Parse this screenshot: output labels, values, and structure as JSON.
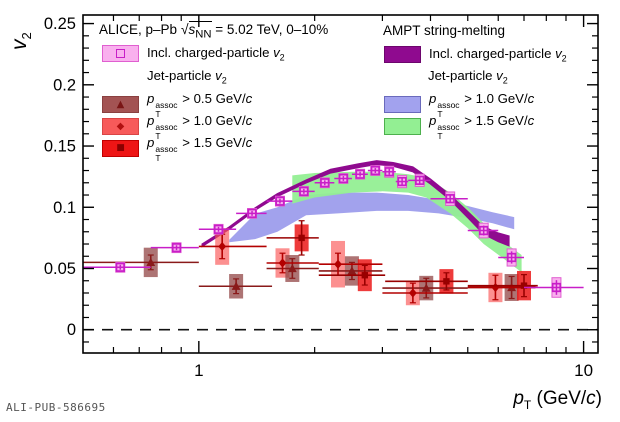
{
  "figure": {
    "watermark": "ALI-PUB-586695"
  },
  "axes": {
    "y_title": {
      "v": "v",
      "sub": "2"
    },
    "x_title": {
      "p": "p",
      "sub": "T",
      "mid": " (GeV/",
      "c": "c",
      "end": ")"
    }
  },
  "icons": {
    "triangle_marker": "▲",
    "diamond_marker": "◆",
    "square_marker": "■"
  },
  "legend_left": {
    "title": {
      "prefix": "ALICE, p–Pb ",
      "sqrt": "√",
      "s": "s",
      "nn": "NN",
      "suffix": " = 5.02 TeV, 0–10%"
    },
    "incl": {
      "text": "Incl. charged-particle ",
      "v": "v",
      "sub": "2"
    },
    "jet": {
      "text": "Jet-particle ",
      "v": "v",
      "sub": "2"
    },
    "rows": [
      {
        "p": "p",
        "sup": "assoc",
        "sub": "T",
        "mid": " > 0.5 GeV/",
        "c": "c"
      },
      {
        "p": "p",
        "sup": "assoc",
        "sub": "T",
        "mid": " > 1.0 GeV/",
        "c": "c"
      },
      {
        "p": "p",
        "sup": "assoc",
        "sub": "T",
        "mid": " > 1.5 GeV/",
        "c": "c"
      }
    ]
  },
  "legend_right": {
    "title": "AMPT string-melting",
    "incl": {
      "text": "Incl. charged-particle ",
      "v": "v",
      "sub": "2"
    },
    "jet": {
      "text": "Jet-particle ",
      "v": "v",
      "sub": "2"
    },
    "rows": [
      {
        "p": "p",
        "sup": "assoc",
        "sub": "T",
        "mid": " > 1.0 GeV/",
        "c": "c"
      },
      {
        "p": "p",
        "sup": "assoc",
        "sub": "T",
        "mid": " > 1.5 GeV/",
        "c": "c"
      }
    ]
  },
  "chart_data": {
    "type": "scatter",
    "title": "ALICE, p-Pb sqrt(s_NN) = 5.02 TeV, 0-10%",
    "xlabel": "p_T (GeV/c)",
    "ylabel": "v_2",
    "x_scale": "log",
    "xlim": [
      0.5,
      10.9
    ],
    "ylim": [
      -0.019,
      0.257
    ],
    "grid": false,
    "zero_line": 0,
    "x_major": [
      {
        "v": 1,
        "label": "1"
      },
      {
        "v": 10,
        "label": "10"
      }
    ],
    "x_minor": [
      0.6,
      0.7,
      0.8,
      0.9,
      2,
      3,
      4,
      5,
      6,
      7,
      8,
      9
    ],
    "y_major": [
      {
        "v": 0,
        "label": "0"
      },
      {
        "v": 0.05,
        "label": "0.05"
      },
      {
        "v": 0.1,
        "label": "0.1"
      },
      {
        "v": 0.15,
        "label": "0.15"
      },
      {
        "v": 0.2,
        "label": "0.2"
      },
      {
        "v": 0.25,
        "label": "0.25"
      }
    ],
    "y_minor_step": 0.01,
    "point_format": [
      "pT",
      "v2",
      "pT_bin_lo",
      "pT_bin_hi",
      "stat_err",
      "sys_err"
    ],
    "series": {
      "incl_charged": {
        "name": "Incl. charged-particle v2",
        "marker": "open-square",
        "color": "#c81ec8",
        "box_fill": "#f9b0ee",
        "box_stroke": "#e05fd0",
        "points": [
          [
            0.625,
            0.051,
            0.5,
            0.75,
            0.002,
            0.004
          ],
          [
            0.875,
            0.067,
            0.75,
            1.0,
            0.002,
            0.004
          ],
          [
            1.125,
            0.082,
            1.0,
            1.25,
            0.002,
            0.004
          ],
          [
            1.375,
            0.095,
            1.25,
            1.5,
            0.002,
            0.004
          ],
          [
            1.625,
            0.105,
            1.5,
            1.75,
            0.002,
            0.004
          ],
          [
            1.875,
            0.113,
            1.75,
            2.0,
            0.002,
            0.004
          ],
          [
            2.125,
            0.12,
            2.0,
            2.25,
            0.002,
            0.004
          ],
          [
            2.375,
            0.1235,
            2.25,
            2.5,
            0.002,
            0.004
          ],
          [
            2.625,
            0.127,
            2.5,
            2.75,
            0.002,
            0.004
          ],
          [
            2.875,
            0.13,
            2.75,
            3.0,
            0.002,
            0.004
          ],
          [
            3.125,
            0.129,
            3.0,
            3.25,
            0.0025,
            0.0045
          ],
          [
            3.375,
            0.121,
            3.25,
            3.5,
            0.0025,
            0.005
          ],
          [
            3.75,
            0.122,
            3.5,
            4.0,
            0.003,
            0.005
          ],
          [
            4.5,
            0.107,
            4.0,
            5.0,
            0.003,
            0.0055
          ],
          [
            5.5,
            0.081,
            5.0,
            6.0,
            0.004,
            0.006
          ],
          [
            6.5,
            0.059,
            6.0,
            7.0,
            0.005,
            0.007
          ],
          [
            8.5,
            0.0345,
            7.0,
            10.0,
            0.006,
            0.008
          ]
        ]
      },
      "jet_assoc05": {
        "name": "Jet-particle v2, pT assoc > 0.5 GeV/c",
        "marker": "triangle",
        "color": "#8a1a1a",
        "box_fill": "rgba(145,70,70,0.75)",
        "points": [
          [
            0.75,
            0.055,
            0.5,
            1.0,
            0.006,
            0.012
          ],
          [
            1.25,
            0.0355,
            1.0,
            1.55,
            0.006,
            0.01
          ],
          [
            1.75,
            0.05,
            1.5,
            2.05,
            0.008,
            0.011
          ],
          [
            2.5,
            0.048,
            2.05,
            3.0,
            0.007,
            0.012
          ],
          [
            3.9,
            0.034,
            3.0,
            5.0,
            0.008,
            0.01
          ],
          [
            6.5,
            0.0345,
            5.0,
            7.5,
            0.009,
            0.011
          ]
        ]
      },
      "jet_assoc10": {
        "name": "Jet-particle v2, pT assoc > 1.0 GeV/c",
        "marker": "diamond",
        "color": "#b30000",
        "box_fill": "rgba(250,85,85,0.65)",
        "points": [
          [
            1.15,
            0.068,
            1.0,
            1.5,
            0.01,
            0.015
          ],
          [
            1.65,
            0.0545,
            1.5,
            2.05,
            0.008,
            0.012
          ],
          [
            2.3,
            0.0535,
            2.05,
            3.0,
            0.009,
            0.019
          ],
          [
            3.6,
            0.03,
            3.0,
            5.0,
            0.008,
            0.01
          ],
          [
            5.9,
            0.0345,
            5.0,
            7.5,
            0.01,
            0.012
          ]
        ]
      },
      "jet_assoc15": {
        "name": "Jet-particle v2, pT assoc > 1.5 GeV/c",
        "marker": "square",
        "color": "#990000",
        "box_fill": "rgba(235,25,25,0.85)",
        "points": [
          [
            1.85,
            0.075,
            1.5,
            2.05,
            0.014,
            0.011
          ],
          [
            2.7,
            0.0445,
            2.05,
            3.05,
            0.008,
            0.013
          ],
          [
            4.4,
            0.0395,
            3.05,
            5.0,
            0.007,
            0.01
          ],
          [
            7.0,
            0.036,
            5.0,
            7.6,
            0.009,
            0.012
          ]
        ]
      }
    },
    "ampt": {
      "incl_line": {
        "name": "AMPT Incl. charged-particle v2",
        "color": "#8f0a8f",
        "x": [
          1.02,
          1.2,
          1.4,
          1.6,
          1.9,
          2.2,
          2.6,
          2.9,
          3.2,
          3.6,
          4.0,
          4.5,
          5.0,
          5.5,
          6.0,
          6.4
        ],
        "y": [
          0.069,
          0.083,
          0.0985,
          0.11,
          0.121,
          0.1295,
          0.134,
          0.1365,
          0.135,
          0.131,
          0.121,
          0.108,
          0.094,
          0.081,
          0.0755,
          0.0725
        ],
        "hw": [
          0.001,
          0.001,
          0.001,
          0.0012,
          0.0012,
          0.0015,
          0.0015,
          0.0015,
          0.0015,
          0.002,
          0.002,
          0.002,
          0.0025,
          0.003,
          0.0035,
          0.004
        ]
      },
      "assoc10_band": {
        "name": "AMPT Jet-particle v2, pT assoc > 1.0 GeV/c",
        "color": "#9d9dec",
        "opacity": 0.95,
        "x": [
          1.2,
          1.4,
          1.6,
          1.9,
          2.3,
          2.9,
          3.5,
          4.2,
          5.0,
          5.8,
          6.6
        ],
        "lo": [
          0.0715,
          0.074,
          0.08,
          0.0935,
          0.095,
          0.097,
          0.097,
          0.095,
          0.091,
          0.087,
          0.082
        ],
        "hi": [
          0.0735,
          0.0947,
          0.1,
          0.11,
          0.112,
          0.112,
          0.11,
          0.106,
          0.101,
          0.096,
          0.092
        ]
      },
      "assoc15_band": {
        "name": "AMPT Jet-particle v2, pT assoc > 1.5 GeV/c",
        "color": "#93ef93",
        "opacity": 0.95,
        "x": [
          1.75,
          2.0,
          2.5,
          3.0,
          3.5,
          3.9,
          4.5,
          5.0,
          5.5,
          6.2,
          6.9
        ],
        "lo": [
          0.103,
          0.108,
          0.112,
          0.113,
          0.112,
          0.108,
          0.095,
          0.083,
          0.07,
          0.058,
          0.047
        ],
        "hi": [
          0.126,
          0.128,
          0.129,
          0.129,
          0.127,
          0.124,
          0.112,
          0.1,
          0.087,
          0.072,
          0.061
        ]
      }
    }
  }
}
